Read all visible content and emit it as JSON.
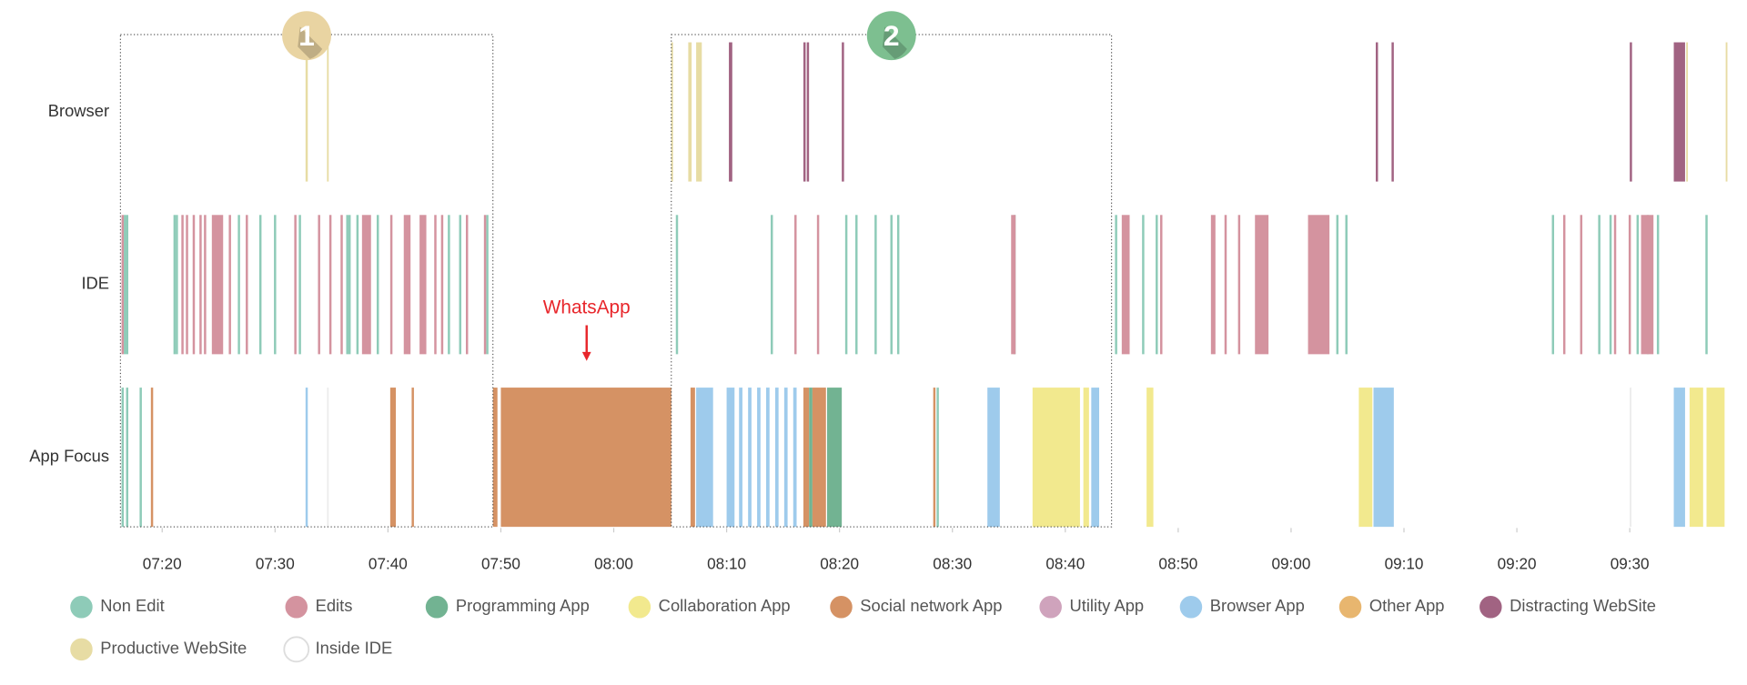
{
  "chart_data": {
    "type": "timeline",
    "categories": [
      "Browser",
      "IDE",
      "App Focus"
    ],
    "xlim": [
      436.2,
      578.8
    ],
    "xticks": [
      {
        "value": 440,
        "label": "07:20"
      },
      {
        "value": 450,
        "label": "07:30"
      },
      {
        "value": 460,
        "label": "07:40"
      },
      {
        "value": 470,
        "label": "07:50"
      },
      {
        "value": 480,
        "label": "08:00"
      },
      {
        "value": 490,
        "label": "08:10"
      },
      {
        "value": 500,
        "label": "08:20"
      },
      {
        "value": 510,
        "label": "08:30"
      },
      {
        "value": 520,
        "label": "08:40"
      },
      {
        "value": 530,
        "label": "08:50"
      },
      {
        "value": 540,
        "label": "09:00"
      },
      {
        "value": 550,
        "label": "09:10"
      },
      {
        "value": 560,
        "label": "09:20"
      },
      {
        "value": 570,
        "label": "09:30"
      }
    ],
    "series": [
      {
        "name": "Non Edit",
        "color": "#8ecbb8",
        "segments": [
          [
            1,
            436.6,
            436.8
          ],
          [
            1,
            436.8,
            437.0
          ],
          [
            1,
            441.0,
            441.2
          ],
          [
            1,
            441.2,
            441.4
          ],
          [
            1,
            446.7,
            446.9
          ],
          [
            1,
            448.6,
            448.8
          ],
          [
            1,
            449.9,
            450.1
          ],
          [
            1,
            452.1,
            452.3
          ],
          [
            1,
            456.3,
            456.5
          ],
          [
            1,
            456.5,
            456.7
          ],
          [
            1,
            457.2,
            457.4
          ],
          [
            1,
            459.0,
            459.2
          ],
          [
            1,
            465.3,
            465.5
          ],
          [
            1,
            466.3,
            466.5
          ],
          [
            1,
            468.7,
            468.9
          ],
          [
            1,
            485.5,
            485.7
          ],
          [
            1,
            493.9,
            494.1
          ],
          [
            1,
            500.5,
            500.7
          ],
          [
            1,
            501.4,
            501.6
          ],
          [
            1,
            503.1,
            503.3
          ],
          [
            1,
            504.5,
            504.7
          ],
          [
            1,
            505.1,
            505.3
          ],
          [
            1,
            515.4,
            515.6
          ],
          [
            1,
            524.4,
            524.6
          ],
          [
            1,
            526.8,
            527.0
          ],
          [
            1,
            528.0,
            528.2
          ],
          [
            1,
            544.0,
            544.2
          ],
          [
            1,
            544.8,
            545.0
          ],
          [
            1,
            563.1,
            563.3
          ],
          [
            1,
            567.2,
            567.4
          ],
          [
            1,
            568.2,
            568.4
          ],
          [
            1,
            570.6,
            570.8
          ],
          [
            1,
            571.5,
            571.7
          ],
          [
            1,
            572.4,
            572.6
          ],
          [
            1,
            576.7,
            576.9
          ],
          [
            2,
            436.4,
            436.6
          ],
          [
            2,
            436.8,
            437.0
          ],
          [
            2,
            438.0,
            438.2
          ],
          [
            2,
            508.6,
            508.8
          ]
        ]
      },
      {
        "name": "Edits",
        "color": "#d4939f",
        "segments": [
          [
            1,
            436.4,
            436.6
          ],
          [
            1,
            441.7,
            441.9
          ],
          [
            1,
            442.1,
            442.3
          ],
          [
            1,
            442.7,
            442.9
          ],
          [
            1,
            443.3,
            443.5
          ],
          [
            1,
            443.7,
            443.9
          ],
          [
            1,
            444.4,
            445.4
          ],
          [
            1,
            445.9,
            446.1
          ],
          [
            1,
            447.4,
            447.6
          ],
          [
            1,
            451.7,
            451.9
          ],
          [
            1,
            453.8,
            454.0
          ],
          [
            1,
            454.8,
            455.0
          ],
          [
            1,
            455.8,
            456.0
          ],
          [
            1,
            457.7,
            458.5
          ],
          [
            1,
            460.2,
            460.4
          ],
          [
            1,
            461.4,
            462.0
          ],
          [
            1,
            462.8,
            463.4
          ],
          [
            1,
            464.1,
            464.3
          ],
          [
            1,
            464.7,
            464.9
          ],
          [
            1,
            466.9,
            467.1
          ],
          [
            1,
            468.5,
            468.7
          ],
          [
            1,
            496.0,
            496.2
          ],
          [
            1,
            498.0,
            498.2
          ],
          [
            1,
            515.2,
            515.6
          ],
          [
            1,
            525.0,
            525.7
          ],
          [
            1,
            528.4,
            528.6
          ],
          [
            1,
            532.9,
            533.3
          ],
          [
            1,
            534.1,
            534.3
          ],
          [
            1,
            535.3,
            535.5
          ],
          [
            1,
            536.8,
            538.0
          ],
          [
            1,
            541.5,
            543.4
          ],
          [
            1,
            564.1,
            564.3
          ],
          [
            1,
            565.6,
            565.8
          ],
          [
            1,
            568.6,
            568.8
          ],
          [
            1,
            569.9,
            570.1
          ],
          [
            1,
            571.0,
            572.1
          ]
        ]
      },
      {
        "name": "Programming App",
        "color": "#72b392",
        "segments": [
          [
            2,
            497.3,
            497.6
          ],
          [
            2,
            498.9,
            500.2
          ]
        ]
      },
      {
        "name": "Collaboration App",
        "color": "#f2e98e",
        "segments": [
          [
            2,
            517.1,
            521.3
          ],
          [
            2,
            521.6,
            522.1
          ],
          [
            2,
            527.2,
            527.8
          ],
          [
            2,
            546.0,
            547.2
          ],
          [
            2,
            575.3,
            576.5
          ],
          [
            2,
            576.8,
            578.4
          ]
        ]
      },
      {
        "name": "Social network App",
        "color": "#d59264",
        "segments": [
          [
            2,
            439.0,
            439.2
          ],
          [
            2,
            460.2,
            460.7
          ],
          [
            2,
            462.1,
            462.3
          ],
          [
            2,
            469.3,
            469.7
          ],
          [
            2,
            470.0,
            485.1
          ],
          [
            2,
            486.8,
            487.2
          ],
          [
            2,
            496.8,
            497.3
          ],
          [
            2,
            497.6,
            498.8
          ],
          [
            2,
            508.3,
            508.5
          ]
        ]
      },
      {
        "name": "Utility App",
        "color": "#cfa3bc",
        "segments": []
      },
      {
        "name": "Browser App",
        "color": "#9ecbec",
        "segments": [
          [
            2,
            452.7,
            452.9
          ],
          [
            2,
            487.3,
            488.8
          ],
          [
            2,
            490.0,
            490.7
          ],
          [
            2,
            491.1,
            491.4
          ],
          [
            2,
            491.9,
            492.2
          ],
          [
            2,
            492.7,
            493.0
          ],
          [
            2,
            493.5,
            493.8
          ],
          [
            2,
            494.3,
            494.6
          ],
          [
            2,
            495.1,
            495.4
          ],
          [
            2,
            495.9,
            496.2
          ],
          [
            2,
            513.1,
            514.2
          ],
          [
            2,
            522.3,
            523.0
          ],
          [
            2,
            547.3,
            549.1
          ],
          [
            2,
            573.9,
            574.9
          ]
        ]
      },
      {
        "name": "Other App",
        "color": "#e8b66f",
        "segments": []
      },
      {
        "name": "Distracting WebSite",
        "color": "#a16382",
        "segments": [
          [
            0,
            490.2,
            490.5
          ],
          [
            0,
            496.8,
            497.0
          ],
          [
            0,
            497.1,
            497.3
          ],
          [
            0,
            500.2,
            500.4
          ],
          [
            0,
            547.5,
            547.7
          ],
          [
            0,
            548.9,
            549.1
          ],
          [
            0,
            570.0,
            570.2
          ],
          [
            0,
            573.9,
            574.9
          ]
        ]
      },
      {
        "name": "Productive WebSite",
        "color": "#e7dca4",
        "segments": [
          [
            0,
            452.7,
            452.9
          ],
          [
            0,
            454.6,
            454.75
          ],
          [
            0,
            485.1,
            485.25
          ],
          [
            0,
            486.6,
            486.9
          ],
          [
            0,
            487.3,
            487.8
          ],
          [
            0,
            575.0,
            575.15
          ],
          [
            0,
            578.5,
            578.65
          ]
        ]
      },
      {
        "name": "Inside IDE",
        "color": "#ffffff",
        "segments": [
          [
            2,
            454.6,
            454.75
          ],
          [
            2,
            570.0,
            570.15
          ]
        ]
      }
    ],
    "annotations": [
      {
        "label": "1",
        "start": 436.3,
        "end": 469.3,
        "color": "#e9d4a2"
      },
      {
        "label": "2",
        "start": 485.1,
        "end": 524.1,
        "color": "#7dbf90"
      }
    ],
    "callout": {
      "text": "WhatsApp",
      "x": 477.6,
      "color": "#e8262b"
    }
  }
}
